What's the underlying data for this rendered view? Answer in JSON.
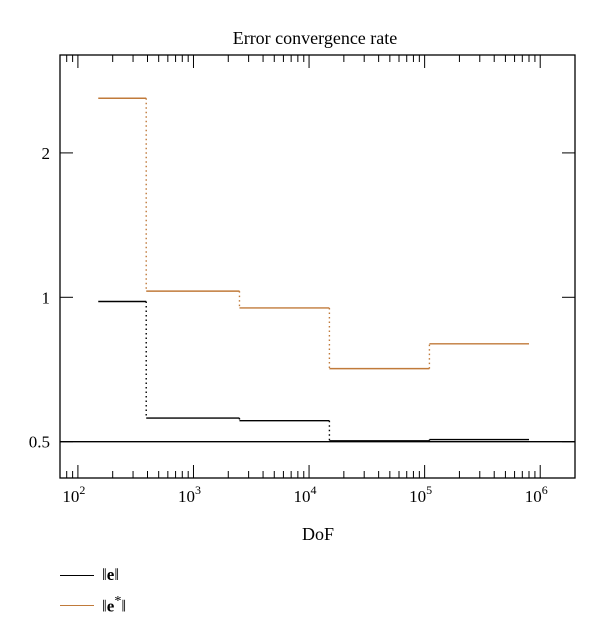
{
  "chart_data": {
    "type": "line",
    "title": "Error convergence rate",
    "xlabel": "DoF",
    "ylabel": "",
    "x_scale": "log",
    "y_scale": "log",
    "xlim": [
      70,
      2000000
    ],
    "ylim": [
      0.42,
      3.2
    ],
    "y_ticks": [
      {
        "value": 0.5,
        "label": "0.5"
      },
      {
        "value": 1,
        "label": "1"
      },
      {
        "value": 2,
        "label": "2"
      }
    ],
    "x_ticks": [
      {
        "value": 100,
        "base": "10",
        "exp": "2"
      },
      {
        "value": 1000,
        "base": "10",
        "exp": "3"
      },
      {
        "value": 10000,
        "base": "10",
        "exp": "4"
      },
      {
        "value": 100000,
        "base": "10",
        "exp": "5"
      },
      {
        "value": 1000000,
        "base": "10",
        "exp": "6"
      }
    ],
    "reference_line": 0.5,
    "series": [
      {
        "legend_norm": "‖",
        "legend_symbol": "e",
        "legend_sup": "",
        "color": "#000000",
        "steps": [
          {
            "x0": 150,
            "x1": 390,
            "y": 0.98
          },
          {
            "x0": 390,
            "x1": 2500,
            "y": 0.56
          },
          {
            "x0": 2500,
            "x1": 15000,
            "y": 0.553
          },
          {
            "x0": 15000,
            "x1": 110000,
            "y": 0.502
          },
          {
            "x0": 110000,
            "x1": 800000,
            "y": 0.505
          }
        ]
      },
      {
        "legend_norm": "‖",
        "legend_symbol": "e",
        "legend_sup": "*",
        "color": "#c07a3a",
        "steps": [
          {
            "x0": 150,
            "x1": 390,
            "y": 2.6
          },
          {
            "x0": 390,
            "x1": 2500,
            "y": 1.03
          },
          {
            "x0": 2500,
            "x1": 15000,
            "y": 0.95
          },
          {
            "x0": 15000,
            "x1": 110000,
            "y": 0.71
          },
          {
            "x0": 110000,
            "x1": 800000,
            "y": 0.8
          }
        ]
      }
    ],
    "grid": false
  }
}
